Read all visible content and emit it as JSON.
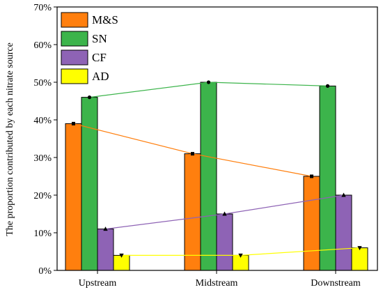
{
  "chart_data": {
    "type": "bar",
    "categories": [
      "Upstream",
      "Midstream",
      "Downstream"
    ],
    "series": [
      {
        "name": "M&S",
        "values": [
          39,
          31,
          25
        ],
        "color": "#ff7f0e",
        "marker": "square"
      },
      {
        "name": "SN",
        "values": [
          46,
          50,
          49
        ],
        "color": "#3cb44b",
        "marker": "circle"
      },
      {
        "name": "CF",
        "values": [
          11,
          15,
          20
        ],
        "color": "#8e63b5",
        "marker": "triangle-up"
      },
      {
        "name": "AD",
        "values": [
          4,
          4,
          6
        ],
        "color": "#ffff00",
        "marker": "triangle-down"
      }
    ],
    "overlay": "connecting lines between bar tops of each series",
    "title": "",
    "xlabel": "",
    "ylabel": "The proportion contributed by each nitrate source",
    "ylim": [
      0,
      70
    ],
    "yticks": [
      "0%",
      "10%",
      "20%",
      "30%",
      "40%",
      "50%",
      "60%",
      "70%"
    ],
    "grid": false,
    "legend": "top-left"
  }
}
